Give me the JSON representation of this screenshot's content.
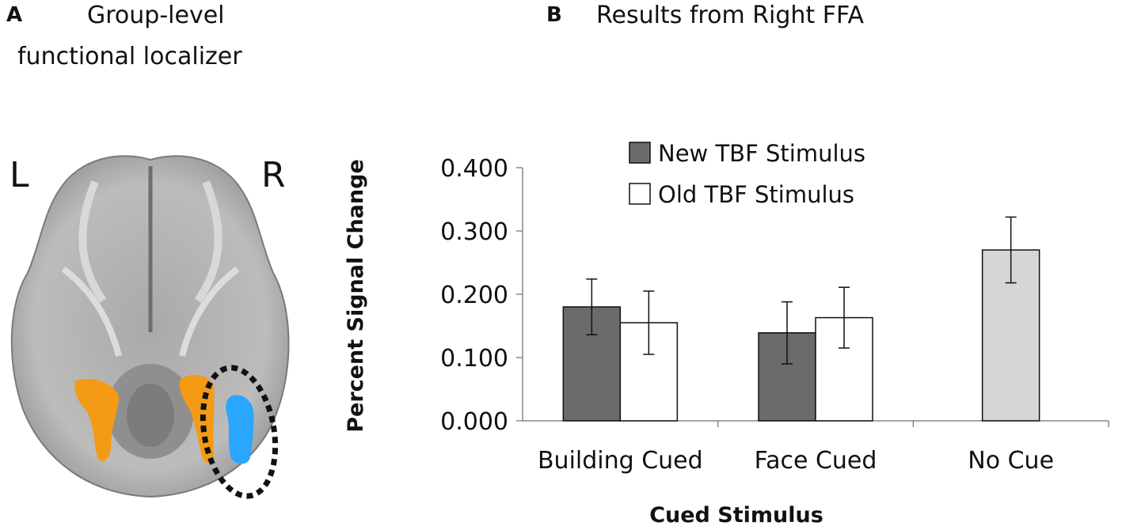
{
  "panel_a": {
    "letter": "A",
    "title_line1": "Group-level",
    "title_line2": "functional localizer",
    "left_label": "L",
    "right_label": "R"
  },
  "panel_b": {
    "letter": "B",
    "title": "Results from Right FFA"
  },
  "colors": {
    "new_bar": "#6b6b6b",
    "old_bar": "#ffffff",
    "nocue_bar": "#d6d6d6",
    "orange": "#f59a14",
    "blue": "#2aa6ff"
  },
  "chart_data": {
    "type": "bar",
    "title": "Results from Right FFA",
    "xlabel": "Cued Stimulus",
    "ylabel": "Percent Signal Change",
    "ylim": [
      0,
      0.4
    ],
    "yticks": [
      "0.000",
      "0.100",
      "0.200",
      "0.300",
      "0.400"
    ],
    "categories": [
      "Building Cued",
      "Face Cued",
      "No Cue"
    ],
    "series": [
      {
        "name": "New TBF Stimulus",
        "values": [
          0.18,
          0.139,
          0.27
        ],
        "errors": [
          0.044,
          0.049,
          0.052
        ]
      },
      {
        "name": "Old TBF Stimulus",
        "values": [
          0.155,
          0.163,
          null
        ],
        "errors": [
          0.05,
          0.048,
          null
        ]
      }
    ],
    "legend": [
      "New TBF Stimulus",
      "Old TBF Stimulus"
    ],
    "legend_position": "top-left"
  }
}
